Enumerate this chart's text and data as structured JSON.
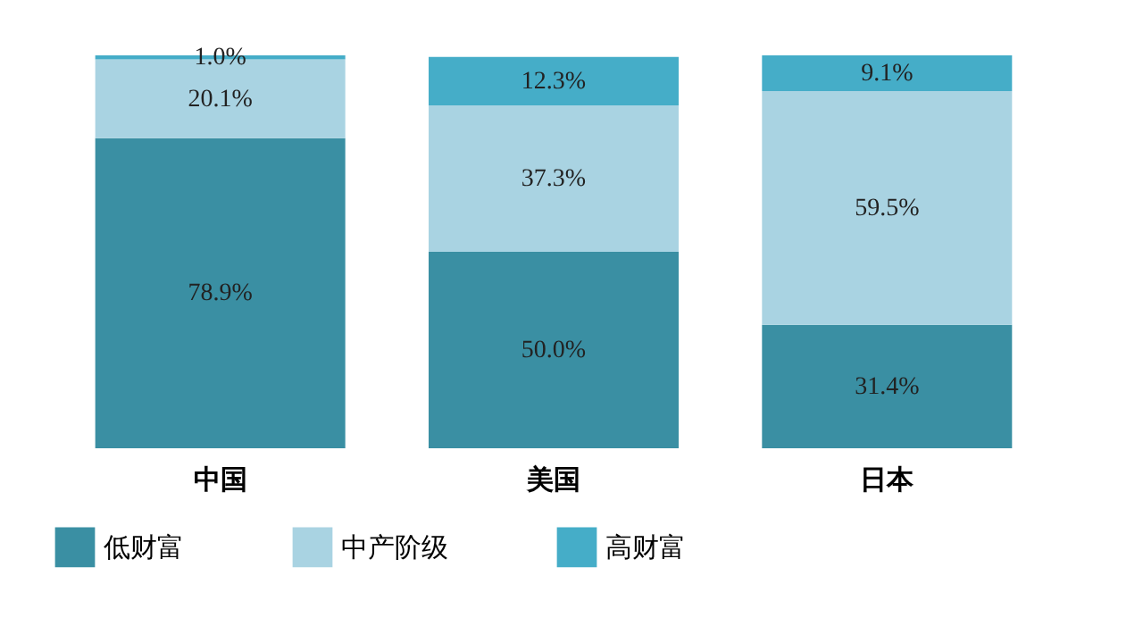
{
  "chart_data": {
    "type": "bar",
    "stacked": true,
    "categories": [
      "中国",
      "美国",
      "日本"
    ],
    "ylim": [
      0,
      100
    ],
    "legend": "bottom",
    "series": [
      {
        "name": "低财富",
        "color": "#3a8fa3",
        "values": [
          78.9,
          50.0,
          31.4
        ],
        "value_labels": [
          "78.9%",
          "50.0%",
          "31.4%"
        ]
      },
      {
        "name": "中产阶级",
        "color": "#a9d3e2",
        "values": [
          20.1,
          37.3,
          59.5
        ],
        "value_labels": [
          "20.1%",
          "37.3%",
          "59.5%"
        ]
      },
      {
        "name": "高财富",
        "color": "#45adc8",
        "values": [
          1.0,
          12.3,
          9.1
        ],
        "value_labels": [
          "1.0%",
          "12.3%",
          "9.1%"
        ]
      }
    ]
  }
}
